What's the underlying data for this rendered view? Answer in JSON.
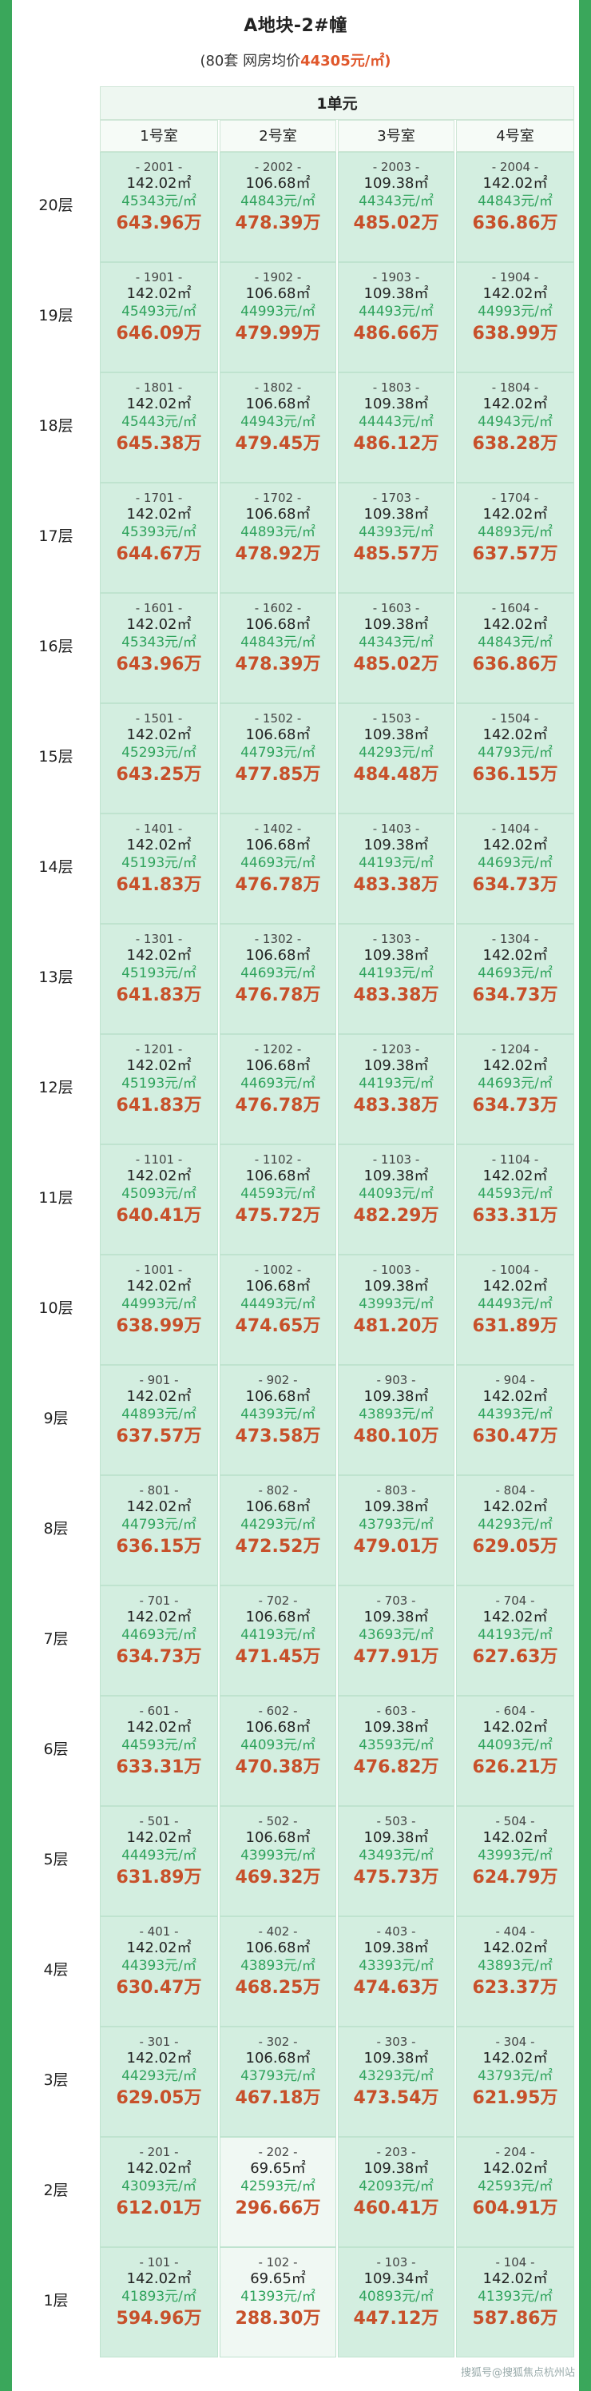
{
  "header": {
    "title": "A地块-2#幢",
    "subtitle_prefix": "(80套  网房均价",
    "subtitle_avg": "44305元/㎡)"
  },
  "unit_label": "1单元",
  "rooms": [
    "1号室",
    "2号室",
    "3号室",
    "4号室"
  ],
  "floors": [
    {
      "label": "20层",
      "cells": [
        {
          "no": "- 2001 -",
          "area": "142.02㎡",
          "unit_price": "45343元/㎡",
          "total": "643.96万"
        },
        {
          "no": "- 2002 -",
          "area": "106.68㎡",
          "unit_price": "44843元/㎡",
          "total": "478.39万"
        },
        {
          "no": "- 2003 -",
          "area": "109.38㎡",
          "unit_price": "44343元/㎡",
          "total": "485.02万"
        },
        {
          "no": "- 2004 -",
          "area": "142.02㎡",
          "unit_price": "44843元/㎡",
          "total": "636.86万"
        }
      ]
    },
    {
      "label": "19层",
      "cells": [
        {
          "no": "- 1901 -",
          "area": "142.02㎡",
          "unit_price": "45493元/㎡",
          "total": "646.09万"
        },
        {
          "no": "- 1902 -",
          "area": "106.68㎡",
          "unit_price": "44993元/㎡",
          "total": "479.99万"
        },
        {
          "no": "- 1903 -",
          "area": "109.38㎡",
          "unit_price": "44493元/㎡",
          "total": "486.66万"
        },
        {
          "no": "- 1904 -",
          "area": "142.02㎡",
          "unit_price": "44993元/㎡",
          "total": "638.99万"
        }
      ]
    },
    {
      "label": "18层",
      "cells": [
        {
          "no": "- 1801 -",
          "area": "142.02㎡",
          "unit_price": "45443元/㎡",
          "total": "645.38万"
        },
        {
          "no": "- 1802 -",
          "area": "106.68㎡",
          "unit_price": "44943元/㎡",
          "total": "479.45万"
        },
        {
          "no": "- 1803 -",
          "area": "109.38㎡",
          "unit_price": "44443元/㎡",
          "total": "486.12万"
        },
        {
          "no": "- 1804 -",
          "area": "142.02㎡",
          "unit_price": "44943元/㎡",
          "total": "638.28万"
        }
      ]
    },
    {
      "label": "17层",
      "cells": [
        {
          "no": "- 1701 -",
          "area": "142.02㎡",
          "unit_price": "45393元/㎡",
          "total": "644.67万"
        },
        {
          "no": "- 1702 -",
          "area": "106.68㎡",
          "unit_price": "44893元/㎡",
          "total": "478.92万"
        },
        {
          "no": "- 1703 -",
          "area": "109.38㎡",
          "unit_price": "44393元/㎡",
          "total": "485.57万"
        },
        {
          "no": "- 1704 -",
          "area": "142.02㎡",
          "unit_price": "44893元/㎡",
          "total": "637.57万"
        }
      ]
    },
    {
      "label": "16层",
      "cells": [
        {
          "no": "- 1601 -",
          "area": "142.02㎡",
          "unit_price": "45343元/㎡",
          "total": "643.96万"
        },
        {
          "no": "- 1602 -",
          "area": "106.68㎡",
          "unit_price": "44843元/㎡",
          "total": "478.39万"
        },
        {
          "no": "- 1603 -",
          "area": "109.38㎡",
          "unit_price": "44343元/㎡",
          "total": "485.02万"
        },
        {
          "no": "- 1604 -",
          "area": "142.02㎡",
          "unit_price": "44843元/㎡",
          "total": "636.86万"
        }
      ]
    },
    {
      "label": "15层",
      "cells": [
        {
          "no": "- 1501 -",
          "area": "142.02㎡",
          "unit_price": "45293元/㎡",
          "total": "643.25万"
        },
        {
          "no": "- 1502 -",
          "area": "106.68㎡",
          "unit_price": "44793元/㎡",
          "total": "477.85万"
        },
        {
          "no": "- 1503 -",
          "area": "109.38㎡",
          "unit_price": "44293元/㎡",
          "total": "484.48万"
        },
        {
          "no": "- 1504 -",
          "area": "142.02㎡",
          "unit_price": "44793元/㎡",
          "total": "636.15万"
        }
      ]
    },
    {
      "label": "14层",
      "cells": [
        {
          "no": "- 1401 -",
          "area": "142.02㎡",
          "unit_price": "45193元/㎡",
          "total": "641.83万"
        },
        {
          "no": "- 1402 -",
          "area": "106.68㎡",
          "unit_price": "44693元/㎡",
          "total": "476.78万"
        },
        {
          "no": "- 1403 -",
          "area": "109.38㎡",
          "unit_price": "44193元/㎡",
          "total": "483.38万"
        },
        {
          "no": "- 1404 -",
          "area": "142.02㎡",
          "unit_price": "44693元/㎡",
          "total": "634.73万"
        }
      ]
    },
    {
      "label": "13层",
      "cells": [
        {
          "no": "- 1301 -",
          "area": "142.02㎡",
          "unit_price": "45193元/㎡",
          "total": "641.83万"
        },
        {
          "no": "- 1302 -",
          "area": "106.68㎡",
          "unit_price": "44693元/㎡",
          "total": "476.78万"
        },
        {
          "no": "- 1303 -",
          "area": "109.38㎡",
          "unit_price": "44193元/㎡",
          "total": "483.38万"
        },
        {
          "no": "- 1304 -",
          "area": "142.02㎡",
          "unit_price": "44693元/㎡",
          "total": "634.73万"
        }
      ]
    },
    {
      "label": "12层",
      "cells": [
        {
          "no": "- 1201 -",
          "area": "142.02㎡",
          "unit_price": "45193元/㎡",
          "total": "641.83万"
        },
        {
          "no": "- 1202 -",
          "area": "106.68㎡",
          "unit_price": "44693元/㎡",
          "total": "476.78万"
        },
        {
          "no": "- 1203 -",
          "area": "109.38㎡",
          "unit_price": "44193元/㎡",
          "total": "483.38万"
        },
        {
          "no": "- 1204 -",
          "area": "142.02㎡",
          "unit_price": "44693元/㎡",
          "total": "634.73万"
        }
      ]
    },
    {
      "label": "11层",
      "cells": [
        {
          "no": "- 1101 -",
          "area": "142.02㎡",
          "unit_price": "45093元/㎡",
          "total": "640.41万"
        },
        {
          "no": "- 1102 -",
          "area": "106.68㎡",
          "unit_price": "44593元/㎡",
          "total": "475.72万"
        },
        {
          "no": "- 1103 -",
          "area": "109.38㎡",
          "unit_price": "44093元/㎡",
          "total": "482.29万"
        },
        {
          "no": "- 1104 -",
          "area": "142.02㎡",
          "unit_price": "44593元/㎡",
          "total": "633.31万"
        }
      ]
    },
    {
      "label": "10层",
      "cells": [
        {
          "no": "- 1001 -",
          "area": "142.02㎡",
          "unit_price": "44993元/㎡",
          "total": "638.99万"
        },
        {
          "no": "- 1002 -",
          "area": "106.68㎡",
          "unit_price": "44493元/㎡",
          "total": "474.65万"
        },
        {
          "no": "- 1003 -",
          "area": "109.38㎡",
          "unit_price": "43993元/㎡",
          "total": "481.20万"
        },
        {
          "no": "- 1004 -",
          "area": "142.02㎡",
          "unit_price": "44493元/㎡",
          "total": "631.89万"
        }
      ]
    },
    {
      "label": "9层",
      "cells": [
        {
          "no": "- 901 -",
          "area": "142.02㎡",
          "unit_price": "44893元/㎡",
          "total": "637.57万"
        },
        {
          "no": "- 902 -",
          "area": "106.68㎡",
          "unit_price": "44393元/㎡",
          "total": "473.58万"
        },
        {
          "no": "- 903 -",
          "area": "109.38㎡",
          "unit_price": "43893元/㎡",
          "total": "480.10万"
        },
        {
          "no": "- 904 -",
          "area": "142.02㎡",
          "unit_price": "44393元/㎡",
          "total": "630.47万"
        }
      ]
    },
    {
      "label": "8层",
      "cells": [
        {
          "no": "- 801 -",
          "area": "142.02㎡",
          "unit_price": "44793元/㎡",
          "total": "636.15万"
        },
        {
          "no": "- 802 -",
          "area": "106.68㎡",
          "unit_price": "44293元/㎡",
          "total": "472.52万"
        },
        {
          "no": "- 803 -",
          "area": "109.38㎡",
          "unit_price": "43793元/㎡",
          "total": "479.01万"
        },
        {
          "no": "- 804 -",
          "area": "142.02㎡",
          "unit_price": "44293元/㎡",
          "total": "629.05万"
        }
      ]
    },
    {
      "label": "7层",
      "cells": [
        {
          "no": "- 701 -",
          "area": "142.02㎡",
          "unit_price": "44693元/㎡",
          "total": "634.73万"
        },
        {
          "no": "- 702 -",
          "area": "106.68㎡",
          "unit_price": "44193元/㎡",
          "total": "471.45万"
        },
        {
          "no": "- 703 -",
          "area": "109.38㎡",
          "unit_price": "43693元/㎡",
          "total": "477.91万"
        },
        {
          "no": "- 704 -",
          "area": "142.02㎡",
          "unit_price": "44193元/㎡",
          "total": "627.63万"
        }
      ]
    },
    {
      "label": "6层",
      "cells": [
        {
          "no": "- 601 -",
          "area": "142.02㎡",
          "unit_price": "44593元/㎡",
          "total": "633.31万"
        },
        {
          "no": "- 602 -",
          "area": "106.68㎡",
          "unit_price": "44093元/㎡",
          "total": "470.38万"
        },
        {
          "no": "- 603 -",
          "area": "109.38㎡",
          "unit_price": "43593元/㎡",
          "total": "476.82万"
        },
        {
          "no": "- 604 -",
          "area": "142.02㎡",
          "unit_price": "44093元/㎡",
          "total": "626.21万"
        }
      ]
    },
    {
      "label": "5层",
      "cells": [
        {
          "no": "- 501 -",
          "area": "142.02㎡",
          "unit_price": "44493元/㎡",
          "total": "631.89万"
        },
        {
          "no": "- 502 -",
          "area": "106.68㎡",
          "unit_price": "43993元/㎡",
          "total": "469.32万"
        },
        {
          "no": "- 503 -",
          "area": "109.38㎡",
          "unit_price": "43493元/㎡",
          "total": "475.73万"
        },
        {
          "no": "- 504 -",
          "area": "142.02㎡",
          "unit_price": "43993元/㎡",
          "total": "624.79万"
        }
      ]
    },
    {
      "label": "4层",
      "cells": [
        {
          "no": "- 401 -",
          "area": "142.02㎡",
          "unit_price": "44393元/㎡",
          "total": "630.47万"
        },
        {
          "no": "- 402 -",
          "area": "106.68㎡",
          "unit_price": "43893元/㎡",
          "total": "468.25万"
        },
        {
          "no": "- 403 -",
          "area": "109.38㎡",
          "unit_price": "43393元/㎡",
          "total": "474.63万"
        },
        {
          "no": "- 404 -",
          "area": "142.02㎡",
          "unit_price": "43893元/㎡",
          "total": "623.37万"
        }
      ]
    },
    {
      "label": "3层",
      "cells": [
        {
          "no": "- 301 -",
          "area": "142.02㎡",
          "unit_price": "44293元/㎡",
          "total": "629.05万"
        },
        {
          "no": "- 302 -",
          "area": "106.68㎡",
          "unit_price": "43793元/㎡",
          "total": "467.18万"
        },
        {
          "no": "- 303 -",
          "area": "109.38㎡",
          "unit_price": "43293元/㎡",
          "total": "473.54万"
        },
        {
          "no": "- 304 -",
          "area": "142.02㎡",
          "unit_price": "43793元/㎡",
          "total": "621.95万"
        }
      ]
    },
    {
      "label": "2层",
      "cells": [
        {
          "no": "- 201 -",
          "area": "142.02㎡",
          "unit_price": "43093元/㎡",
          "total": "612.01万"
        },
        {
          "no": "- 202 -",
          "area": "69.65㎡",
          "unit_price": "42593元/㎡",
          "total": "296.66万",
          "light": true
        },
        {
          "no": "- 203 -",
          "area": "109.38㎡",
          "unit_price": "42093元/㎡",
          "total": "460.41万"
        },
        {
          "no": "- 204 -",
          "area": "142.02㎡",
          "unit_price": "42593元/㎡",
          "total": "604.91万"
        }
      ]
    },
    {
      "label": "1层",
      "cells": [
        {
          "no": "- 101 -",
          "area": "142.02㎡",
          "unit_price": "41893元/㎡",
          "total": "594.96万"
        },
        {
          "no": "- 102 -",
          "area": "69.65㎡",
          "unit_price": "41393元/㎡",
          "total": "288.30万",
          "light": true
        },
        {
          "no": "- 103 -",
          "area": "109.34㎡",
          "unit_price": "40893元/㎡",
          "total": "447.12万"
        },
        {
          "no": "- 104 -",
          "area": "142.02㎡",
          "unit_price": "41393元/㎡",
          "total": "587.86万"
        }
      ]
    }
  ],
  "footer_watermark": "搜狐号@搜狐焦点杭州站",
  "colors": {
    "unit_price": "#2fa35c",
    "total": "#c7502a",
    "cell_bg": "#d3eee0",
    "frame": "#3aa75b"
  }
}
